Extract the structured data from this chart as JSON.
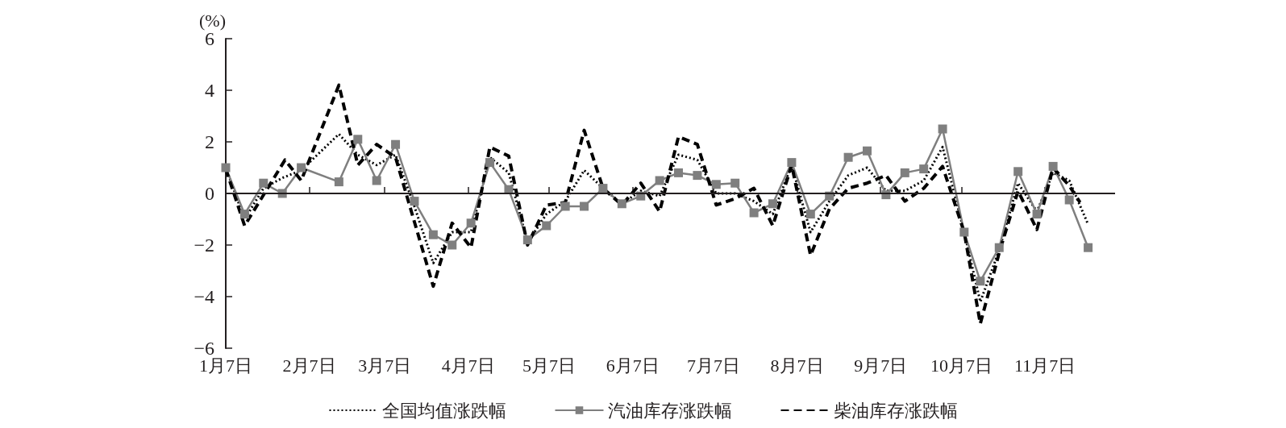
{
  "chart_data": {
    "type": "line",
    "ylabel": "(%)",
    "xlim": [
      "--01-07",
      "--12-03"
    ],
    "xticks": [
      {
        "value": "--01-07",
        "label": "1月7日"
      },
      {
        "value": "--02-07",
        "label": "2月7日"
      },
      {
        "value": "--03-07",
        "label": "3月7日"
      },
      {
        "value": "--04-07",
        "label": "4月7日"
      },
      {
        "value": "--05-07",
        "label": "5月7日"
      },
      {
        "value": "--06-07",
        "label": "6月7日"
      },
      {
        "value": "--07-07",
        "label": "7月7日"
      },
      {
        "value": "--08-07",
        "label": "8月7日"
      },
      {
        "value": "--09-07",
        "label": "9月7日"
      },
      {
        "value": "--10-07",
        "label": "10月7日"
      },
      {
        "value": "--11-07",
        "label": "11月7日"
      }
    ],
    "ylim": [
      -6,
      6
    ],
    "yticks": [
      -6,
      -4,
      -2,
      0,
      2,
      4,
      6
    ],
    "grid": false,
    "ref_lines": [
      {
        "axis": "y",
        "value": 0,
        "color": "#231f20"
      }
    ],
    "legend": "bottom",
    "series": [
      {
        "name": "全国均值涨跌幅",
        "color": "#000000",
        "line_style": "dotted",
        "marker": "none",
        "x": [
          "--01-07",
          "--01-14",
          "--01-21",
          "--01-28",
          "--02-04",
          "--02-18",
          "--02-25",
          "--03-04",
          "--03-11",
          "--03-18",
          "--03-25",
          "--04-01",
          "--04-08",
          "--04-15",
          "--04-22",
          "--04-29",
          "--05-06",
          "--05-13",
          "--05-20",
          "--05-27",
          "--06-03",
          "--06-10",
          "--06-17",
          "--06-24",
          "--07-01",
          "--07-08",
          "--07-15",
          "--07-22",
          "--07-29",
          "--08-05",
          "--08-12",
          "--08-19",
          "--08-26",
          "--09-02",
          "--09-09",
          "--09-16",
          "--09-23",
          "--09-30",
          "--10-08",
          "--10-14",
          "--10-21",
          "--10-28",
          "--11-04",
          "--11-10",
          "--11-16",
          "--11-23"
        ],
        "values": [
          1.0,
          -1.0,
          0.2,
          0.6,
          0.9,
          2.3,
          1.5,
          1.1,
          1.5,
          -0.5,
          -2.7,
          -1.5,
          -1.5,
          1.4,
          0.8,
          -1.9,
          -0.8,
          -0.3,
          0.9,
          0.2,
          -0.4,
          0.1,
          -0.1,
          1.5,
          1.3,
          0.0,
          0.0,
          -0.3,
          -0.8,
          1.1,
          -1.5,
          -0.3,
          0.7,
          1.0,
          0.1,
          0.1,
          0.5,
          1.8,
          -1.5,
          -4.2,
          -2.2,
          0.4,
          -0.7,
          0.8,
          0.5,
          -1.2
        ]
      },
      {
        "name": "汽油库存涨跌幅",
        "color": "#7f7f7f",
        "line_style": "solid",
        "marker": "square",
        "x": [
          "--01-07",
          "--01-14",
          "--01-21",
          "--01-28",
          "--02-04",
          "--02-18",
          "--02-25",
          "--03-04",
          "--03-11",
          "--03-18",
          "--03-25",
          "--04-01",
          "--04-08",
          "--04-15",
          "--04-22",
          "--04-29",
          "--05-06",
          "--05-13",
          "--05-20",
          "--05-27",
          "--06-03",
          "--06-10",
          "--06-17",
          "--06-24",
          "--07-01",
          "--07-08",
          "--07-15",
          "--07-22",
          "--07-29",
          "--08-05",
          "--08-12",
          "--08-19",
          "--08-26",
          "--09-02",
          "--09-09",
          "--09-16",
          "--09-23",
          "--09-30",
          "--10-08",
          "--10-14",
          "--10-21",
          "--10-28",
          "--11-04",
          "--11-10",
          "--11-16",
          "--11-23"
        ],
        "values": [
          1.0,
          -0.8,
          0.4,
          0.0,
          1.0,
          0.45,
          2.1,
          0.5,
          1.9,
          -0.3,
          -1.6,
          -2.0,
          -1.15,
          1.2,
          0.15,
          -1.8,
          -1.25,
          -0.5,
          -0.5,
          0.2,
          -0.4,
          -0.1,
          0.5,
          0.8,
          0.7,
          0.35,
          0.4,
          -0.75,
          -0.4,
          1.2,
          -0.8,
          -0.1,
          1.4,
          1.65,
          -0.05,
          0.8,
          0.95,
          2.5,
          -1.5,
          -3.4,
          -2.1,
          0.85,
          -0.8,
          1.05,
          -0.25,
          -2.1
        ]
      },
      {
        "name": "柴油库存涨跌幅",
        "color": "#000000",
        "line_style": "dashed",
        "marker": "none",
        "x": [
          "--01-07",
          "--01-14",
          "--01-29",
          "--02-04",
          "--02-18",
          "--02-25",
          "--03-04",
          "--03-11",
          "--03-25",
          "--04-01",
          "--04-08",
          "--04-15",
          "--04-22",
          "--04-29",
          "--05-06",
          "--05-13",
          "--05-20",
          "--05-27",
          "--06-03",
          "--06-10",
          "--06-17",
          "--06-24",
          "--07-01",
          "--07-08",
          "--07-15",
          "--07-22",
          "--07-29",
          "--08-05",
          "--08-12",
          "--08-19",
          "--08-26",
          "--09-02",
          "--09-09",
          "--09-16",
          "--09-23",
          "--09-30",
          "--10-08",
          "--10-14",
          "--10-21",
          "--10-28",
          "--11-04",
          "--11-10",
          "--11-16",
          "--11-20"
        ],
        "values": [
          0.95,
          -1.25,
          1.3,
          0.5,
          4.2,
          1.1,
          1.9,
          1.4,
          -3.6,
          -1.15,
          -2.1,
          1.8,
          1.45,
          -2.0,
          -0.45,
          -0.35,
          2.45,
          0.2,
          -0.45,
          0.4,
          -0.7,
          2.2,
          1.9,
          -0.45,
          -0.2,
          0.2,
          -1.25,
          1.1,
          -2.4,
          -0.6,
          0.2,
          0.4,
          0.7,
          -0.3,
          0.2,
          1.05,
          -1.5,
          -5.05,
          -2.3,
          0.1,
          -1.4,
          1.0,
          0.3,
          -0.35
        ]
      }
    ]
  }
}
